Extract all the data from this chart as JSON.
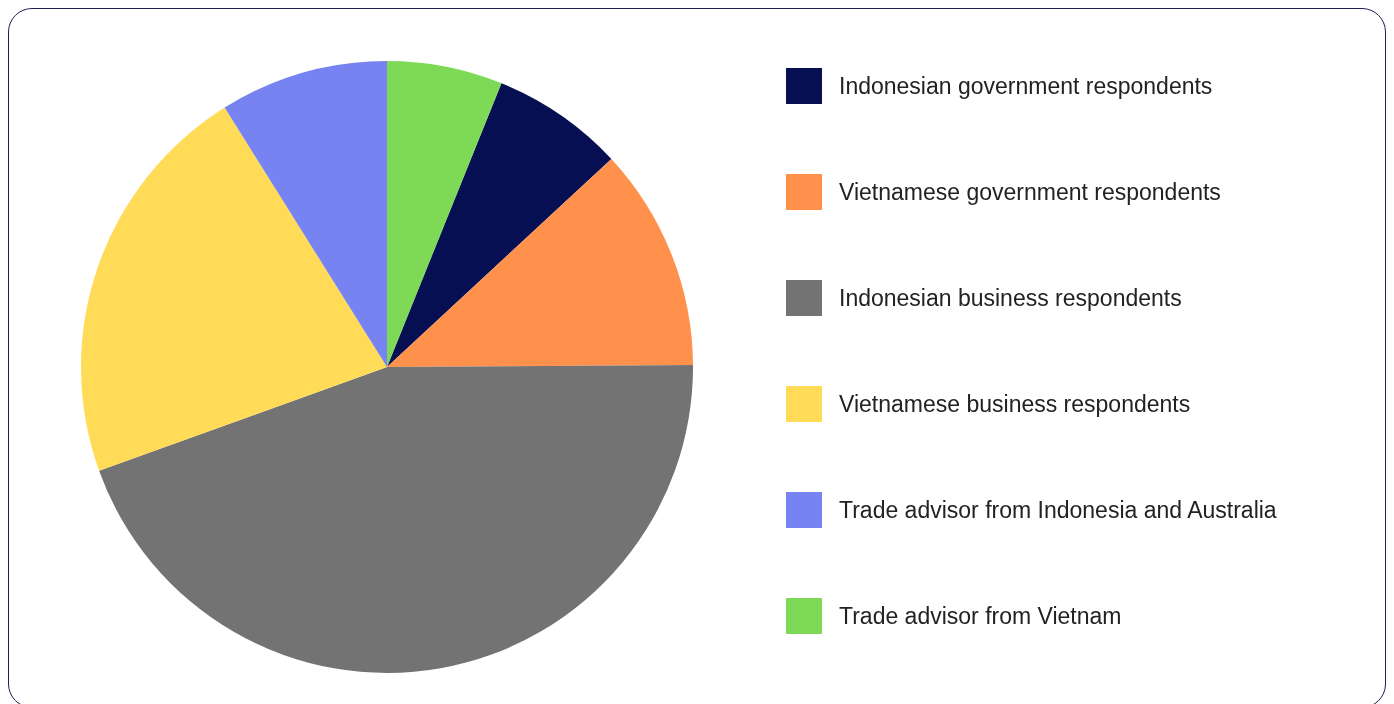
{
  "chart_data": {
    "type": "pie",
    "categories": [
      "Indonesian government respondents",
      "Vietnamese government respondents",
      "Indonesian business respondents",
      "Vietnamese business respondents",
      "Trade advisor from Indonesia and Australia",
      "Trade advisor from Vietnam"
    ],
    "values": [
      7.0,
      11.8,
      44.6,
      21.6,
      8.9,
      6.1
    ],
    "colors": [
      "#060f52",
      "#ff914d",
      "#737373",
      "#ffdb58",
      "#7683f0",
      "#7ed957"
    ],
    "legend": "right"
  }
}
